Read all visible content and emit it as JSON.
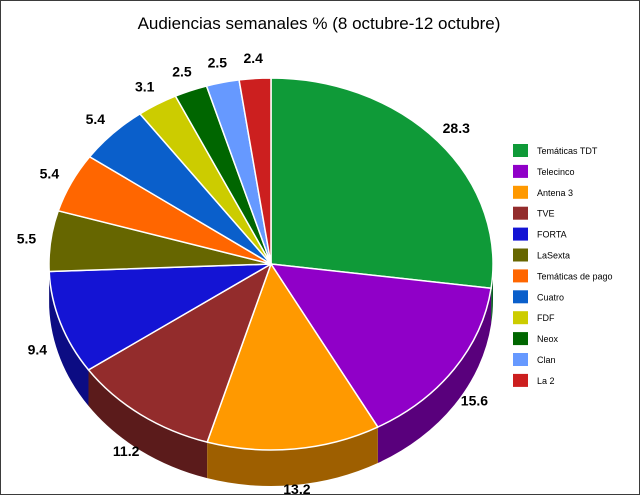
{
  "chart_data": {
    "type": "pie",
    "title": "Audiencias semanales % (8 octubre-12 octubre)",
    "categories": [
      "Temáticas TDT",
      "Telecinco",
      "Antena 3",
      "TVE",
      "FORTA",
      "LaSexta",
      "Temáticas de pago",
      "Cuatro",
      "FDF",
      "Neox",
      "Clan",
      "La 2"
    ],
    "values": [
      28.3,
      15.6,
      13.2,
      11.2,
      9.4,
      5.5,
      5.4,
      5.4,
      3.1,
      2.5,
      2.5,
      2.4
    ],
    "labels": [
      "28.3",
      "15.6",
      "13.2",
      "11.2",
      "9.4",
      "5.5",
      "5.4",
      "5.4",
      "3.1",
      "2.5",
      "2.5",
      "2.4"
    ],
    "colors": [
      "#0f9a38",
      "#9000c8",
      "#ff9900",
      "#932c2c",
      "#1414d4",
      "#666600",
      "#ff6600",
      "#0a5fcb",
      "#cccc00",
      "#006600",
      "#6699ff",
      "#cc1f1f"
    ],
    "legend": "right",
    "style": "3d-tilted"
  }
}
